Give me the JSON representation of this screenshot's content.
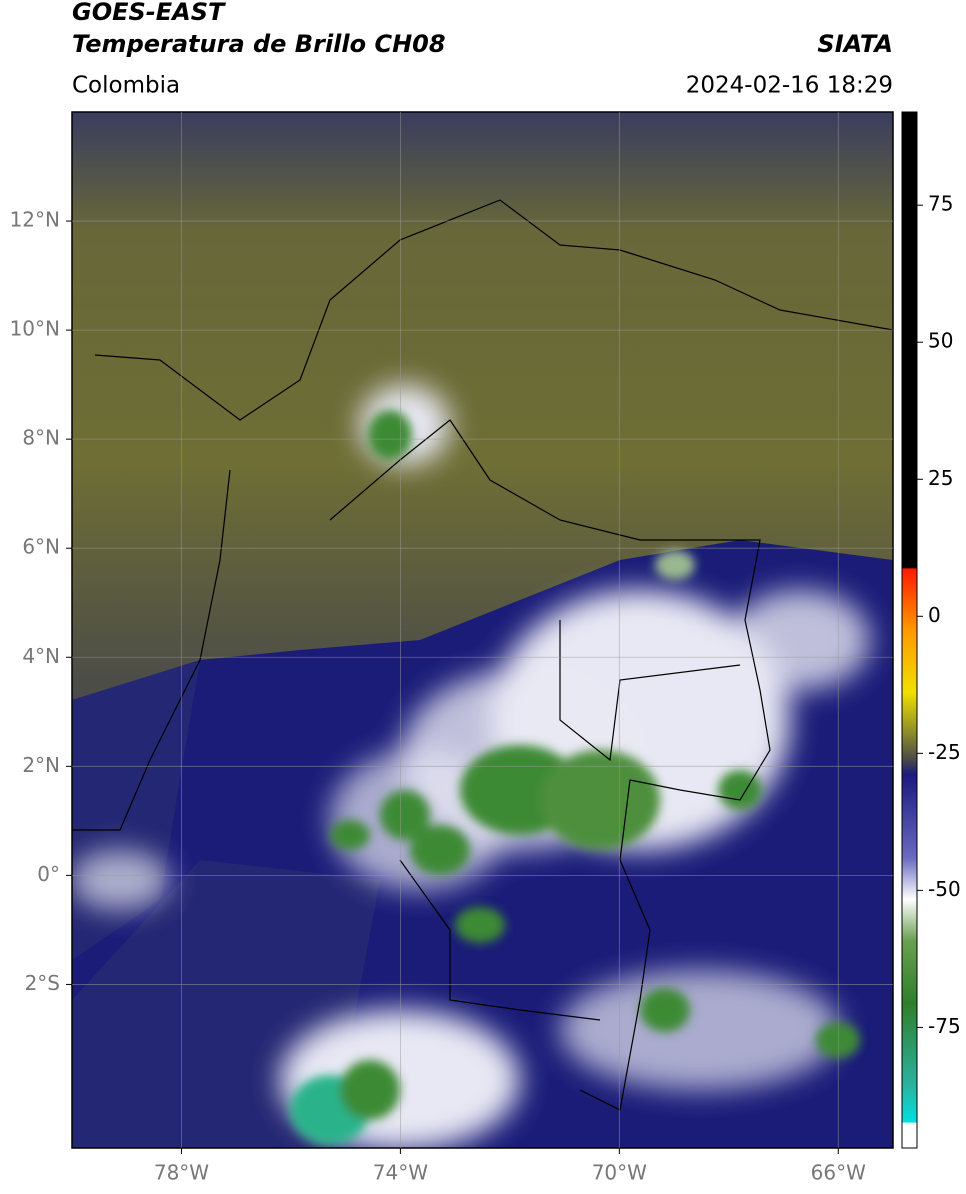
{
  "header": {
    "title_line1": "GOES-EAST",
    "title_line2": "Temperatura de Brillo CH08",
    "source": "SIATA",
    "region": "Colombia",
    "timestamp": "2024-02-16 18:29"
  },
  "map": {
    "xlim": [
      -80,
      -65
    ],
    "ylim": [
      -5,
      14
    ],
    "xticks": [
      {
        "value": -78,
        "label": "78°W"
      },
      {
        "value": -74,
        "label": "74°W"
      },
      {
        "value": -70,
        "label": "70°W"
      },
      {
        "value": -66,
        "label": "66°W"
      }
    ],
    "yticks": [
      {
        "value": 12,
        "label": "12°N"
      },
      {
        "value": 10,
        "label": "10°N"
      },
      {
        "value": 8,
        "label": "8°N"
      },
      {
        "value": 6,
        "label": "6°N"
      },
      {
        "value": 4,
        "label": "4°N"
      },
      {
        "value": 2,
        "label": "2°N"
      },
      {
        "value": 0,
        "label": "0°"
      },
      {
        "value": -2,
        "label": "2°S"
      }
    ]
  },
  "colorbar": {
    "lim": [
      -97,
      92
    ],
    "ticks": [
      75,
      50,
      25,
      0,
      -25,
      -50,
      -75
    ]
  }
}
